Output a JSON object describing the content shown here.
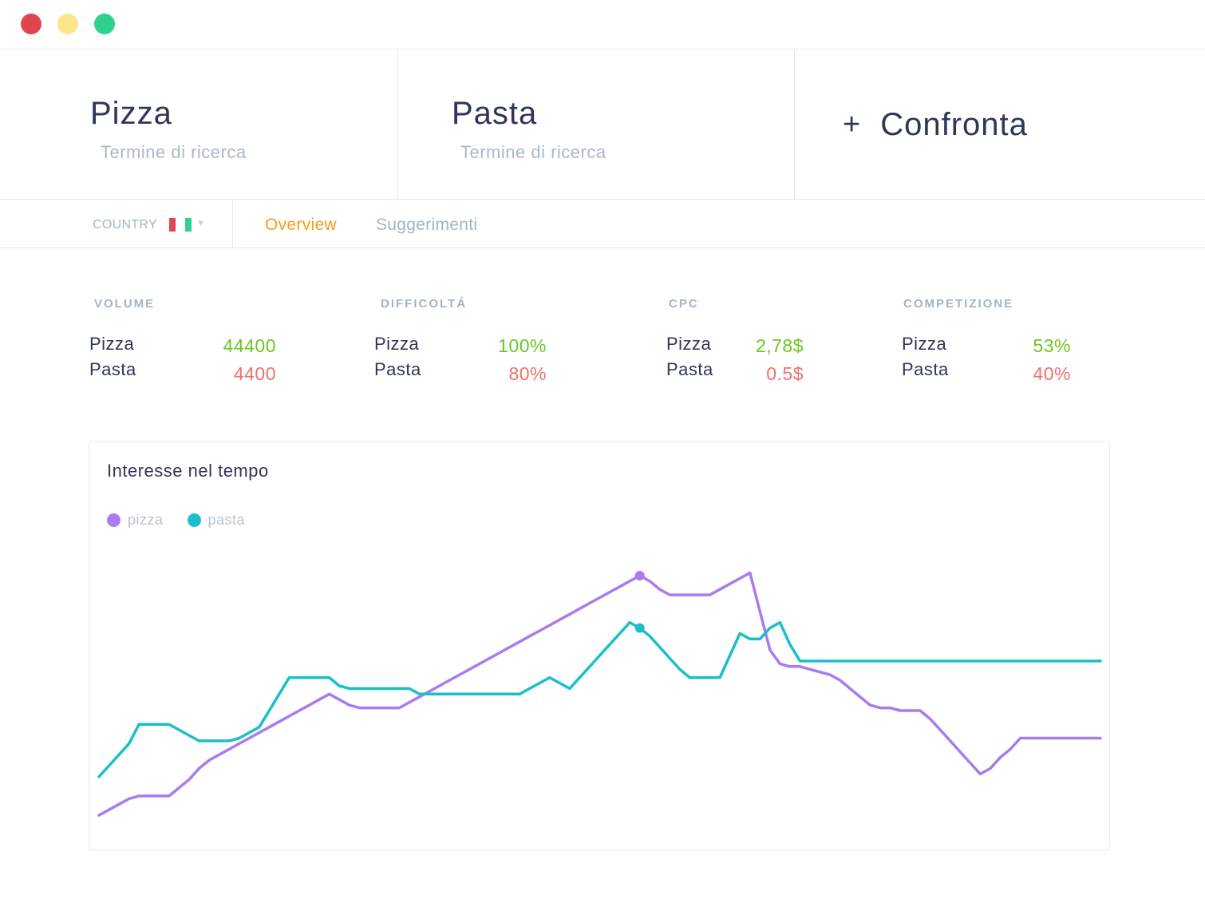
{
  "window": {
    "controls": [
      "close",
      "minimize",
      "maximize"
    ]
  },
  "terms": [
    {
      "name": "Pizza",
      "subtitle": "Termine di ricerca"
    },
    {
      "name": "Pasta",
      "subtitle": "Termine di ricerca"
    }
  ],
  "compare": {
    "plus": "+",
    "label": "Confronta"
  },
  "filters": {
    "country_label": "COUNTRY",
    "country_flag": "italy-flag",
    "tabs": [
      {
        "label": "Overview",
        "active": true
      },
      {
        "label": "Suggerimenti",
        "active": false
      }
    ]
  },
  "metrics": [
    {
      "title": "VOLUME",
      "rows": [
        {
          "term": "Pizza",
          "value": "44400"
        },
        {
          "term": "Pasta",
          "value": "4400"
        }
      ]
    },
    {
      "title": "DIFFICOLTÁ",
      "rows": [
        {
          "term": "Pizza",
          "value": "100%"
        },
        {
          "term": "Pasta",
          "value": "80%"
        }
      ]
    },
    {
      "title": "CPC",
      "rows": [
        {
          "term": "Pizza",
          "value": "2,78$"
        },
        {
          "term": "Pasta",
          "value": "0.5$"
        }
      ]
    },
    {
      "title": "COMPETIZIONE",
      "rows": [
        {
          "term": "Pizza",
          "value": "53%"
        },
        {
          "term": "Pasta",
          "value": "40%"
        }
      ]
    }
  ],
  "colors": {
    "good": "#6cc624",
    "bad": "#f26e6e",
    "accent_tab": "#f59b1e",
    "pizza": "#a87bf0",
    "pasta": "#1bbfc9"
  },
  "chart_data": {
    "type": "line",
    "title": "Interesse nel tempo",
    "legend_placement": "top-left",
    "grid": false,
    "ylim": [
      0,
      100
    ],
    "x": [
      0,
      1,
      2,
      3,
      4,
      5,
      6,
      7,
      8,
      9,
      10,
      11,
      12,
      13,
      14,
      15,
      16,
      17,
      18,
      19,
      20,
      21,
      22,
      23,
      24,
      25,
      26,
      27,
      28,
      29,
      30,
      31,
      32,
      33,
      34,
      35,
      36,
      37,
      38,
      39,
      40,
      41,
      42,
      43,
      44,
      45,
      46,
      47,
      48,
      49,
      50,
      51,
      52,
      53,
      54,
      55,
      56,
      57,
      58,
      59,
      60,
      61,
      62,
      63,
      64,
      65,
      66,
      67,
      68,
      69,
      70,
      71,
      72,
      73,
      74,
      75,
      76,
      77,
      78,
      79,
      80,
      81,
      82,
      83,
      84,
      85,
      86,
      87,
      88,
      89,
      90,
      91,
      92,
      93,
      94,
      95,
      96,
      97,
      98,
      99,
      100
    ],
    "series": [
      {
        "name": "pizza",
        "color": "#a87bf0",
        "highlight_index": 54,
        "values": [
          2,
          4,
          6,
          8,
          9,
          9,
          9,
          9,
          12,
          15,
          19,
          22,
          24,
          26,
          28,
          30,
          32,
          34,
          36,
          38,
          40,
          42,
          44,
          46,
          44,
          42,
          41,
          41,
          41,
          41,
          41,
          43,
          45,
          47,
          49,
          51,
          53,
          55,
          57,
          59,
          61,
          63,
          65,
          67,
          69,
          71,
          73,
          75,
          77,
          79,
          81,
          83,
          85,
          87,
          89,
          87,
          84,
          82,
          82,
          82,
          82,
          82,
          84,
          86,
          88,
          90,
          76,
          62,
          57,
          56,
          56,
          55,
          54,
          53,
          51,
          48,
          45,
          42,
          41,
          41,
          40,
          40,
          40,
          37,
          33,
          29,
          25,
          21,
          17,
          19,
          23,
          26,
          30,
          30,
          30,
          30,
          30,
          30,
          30,
          30,
          30
        ],
        "markers": []
      },
      {
        "name": "pasta",
        "color": "#1bbfc9",
        "highlight_index": 54,
        "values": [
          16,
          20,
          24,
          28,
          35,
          35,
          35,
          35,
          33,
          31,
          29,
          29,
          29,
          29,
          30,
          32,
          34,
          40,
          46,
          52,
          52,
          52,
          52,
          52,
          49,
          48,
          48,
          48,
          48,
          48,
          48,
          48,
          46,
          46,
          46,
          46,
          46,
          46,
          46,
          46,
          46,
          46,
          46,
          48,
          50,
          52,
          50,
          48,
          52,
          56,
          60,
          64,
          68,
          72,
          70,
          67,
          63,
          59,
          55,
          52,
          52,
          52,
          52,
          60,
          68,
          66,
          66,
          70,
          72,
          64,
          58,
          58,
          58,
          58,
          58,
          58,
          58,
          58,
          58,
          58,
          58,
          58,
          58,
          58,
          58,
          58,
          58,
          58,
          58,
          58,
          58,
          58,
          58,
          58,
          58,
          58,
          58,
          58,
          58,
          58,
          58
        ],
        "markers": []
      }
    ]
  }
}
